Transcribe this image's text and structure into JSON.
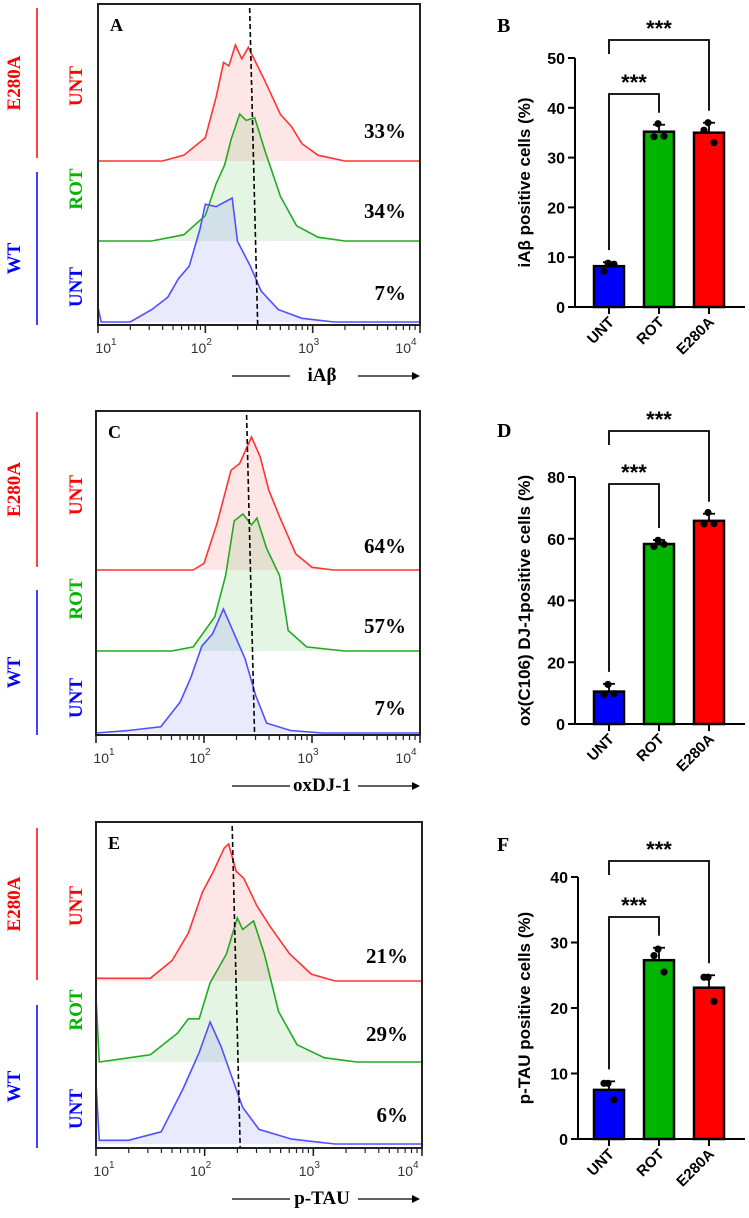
{
  "colors": {
    "wt_unt": "#0000ff",
    "rot": "#00b400",
    "e280a": "#ff0000",
    "hist_blue": "#5050ff",
    "hist_green": "#22aa22",
    "hist_red": "#ff3333"
  },
  "group_labels": {
    "e280a": "E280A",
    "wt": "WT",
    "unt": "UNT",
    "rot": "ROT"
  },
  "chart_data": [
    {
      "panel": "A",
      "type": "area",
      "xlabel": "iAβ",
      "x_scale": "log",
      "xlim": [
        10,
        10000
      ],
      "x_tick_labels": [
        "10",
        "10",
        "10",
        "10"
      ],
      "x_tick_exponents": [
        "1",
        "2",
        "3",
        "4"
      ],
      "threshold": 282,
      "series": [
        {
          "name": "E280A UNT",
          "color": "#ff3333",
          "percent": "33%",
          "points": [
            [
              1.6,
              0
            ],
            [
              1.8,
              0.05
            ],
            [
              2.0,
              0.2
            ],
            [
              2.1,
              0.55
            ],
            [
              2.17,
              0.85
            ],
            [
              2.22,
              0.82
            ],
            [
              2.28,
              1
            ],
            [
              2.34,
              0.88
            ],
            [
              2.4,
              0.98
            ],
            [
              2.55,
              0.7
            ],
            [
              2.7,
              0.4
            ],
            [
              2.8,
              0.3
            ],
            [
              2.9,
              0.15
            ],
            [
              3.05,
              0.05
            ],
            [
              3.3,
              0
            ],
            [
              4,
              0
            ]
          ]
        },
        {
          "name": "WT ROT",
          "color": "#22aa22",
          "percent": "34%",
          "points": [
            [
              1.5,
              0
            ],
            [
              1.8,
              0.05
            ],
            [
              2.0,
              0.2
            ],
            [
              2.1,
              0.45
            ],
            [
              2.18,
              0.6
            ],
            [
              2.24,
              0.8
            ],
            [
              2.32,
              1
            ],
            [
              2.38,
              0.95
            ],
            [
              2.46,
              0.97
            ],
            [
              2.56,
              0.7
            ],
            [
              2.7,
              0.35
            ],
            [
              2.85,
              0.12
            ],
            [
              3.05,
              0.03
            ],
            [
              3.3,
              0
            ],
            [
              4,
              0
            ]
          ]
        },
        {
          "name": "WT UNT",
          "color": "#5050ff",
          "percent": "7%",
          "points": [
            [
              1.0,
              0.12
            ],
            [
              1.03,
              0
            ],
            [
              1.3,
              0
            ],
            [
              1.5,
              0.1
            ],
            [
              1.65,
              0.2
            ],
            [
              1.75,
              0.35
            ],
            [
              1.85,
              0.45
            ],
            [
              1.95,
              0.75
            ],
            [
              2.0,
              0.95
            ],
            [
              2.1,
              0.93
            ],
            [
              2.25,
              1
            ],
            [
              2.3,
              0.65
            ],
            [
              2.42,
              0.45
            ],
            [
              2.52,
              0.25
            ],
            [
              2.68,
              0.1
            ],
            [
              2.9,
              0.03
            ],
            [
              3.2,
              0
            ],
            [
              4,
              0
            ]
          ]
        }
      ]
    },
    {
      "panel": "B",
      "type": "bar",
      "ylabel": "iAβ positive cells (%)",
      "ylim": [
        0,
        50
      ],
      "yticks": [
        "0",
        "10",
        "20",
        "30",
        "40",
        "50"
      ],
      "categories": [
        "UNT",
        "ROT",
        "E280A"
      ],
      "values": [
        8.2,
        35.2,
        35.0
      ],
      "errors": [
        0.8,
        1.4,
        2.0
      ],
      "points": [
        [
          8.8,
          7.2,
          8.6
        ],
        [
          36.8,
          34.2,
          34.3
        ],
        [
          37.0,
          35.5,
          33.0
        ]
      ],
      "comparisons": [
        {
          "pair": [
            "UNT",
            "ROT"
          ],
          "label": "***"
        },
        {
          "pair": [
            "UNT",
            "E280A"
          ],
          "label": "***"
        }
      ]
    },
    {
      "panel": "C",
      "type": "area",
      "xlabel": "oxDJ-1",
      "x_scale": "log",
      "xlim": [
        10,
        10000
      ],
      "x_tick_labels": [
        "10",
        "10",
        "10",
        "10"
      ],
      "x_tick_exponents": [
        "1",
        "2",
        "3",
        "4"
      ],
      "threshold": 270,
      "series": [
        {
          "name": "E280A UNT",
          "color": "#ff3333",
          "percent": "64%",
          "points": [
            [
              1.9,
              0
            ],
            [
              2.0,
              0.05
            ],
            [
              2.12,
              0.35
            ],
            [
              2.25,
              0.75
            ],
            [
              2.33,
              0.8
            ],
            [
              2.44,
              1
            ],
            [
              2.52,
              0.85
            ],
            [
              2.6,
              0.6
            ],
            [
              2.7,
              0.4
            ],
            [
              2.85,
              0.12
            ],
            [
              3.0,
              0.02
            ],
            [
              3.2,
              0
            ],
            [
              4,
              0
            ]
          ]
        },
        {
          "name": "WT ROT",
          "color": "#22aa22",
          "percent": "57%",
          "points": [
            [
              1.7,
              0
            ],
            [
              1.9,
              0.03
            ],
            [
              2.1,
              0.25
            ],
            [
              2.2,
              0.55
            ],
            [
              2.28,
              0.95
            ],
            [
              2.36,
              1
            ],
            [
              2.44,
              0.92
            ],
            [
              2.49,
              0.97
            ],
            [
              2.58,
              0.75
            ],
            [
              2.7,
              0.55
            ],
            [
              2.78,
              0.15
            ],
            [
              2.95,
              0.03
            ],
            [
              3.3,
              0
            ],
            [
              4,
              0
            ]
          ]
        },
        {
          "name": "WT UNT",
          "color": "#5050ff",
          "percent": "7%",
          "points": [
            [
              1.0,
              0
            ],
            [
              1.3,
              0.02
            ],
            [
              1.6,
              0.05
            ],
            [
              1.78,
              0.25
            ],
            [
              1.88,
              0.45
            ],
            [
              1.98,
              0.7
            ],
            [
              2.08,
              0.8
            ],
            [
              2.18,
              1
            ],
            [
              2.28,
              0.8
            ],
            [
              2.38,
              0.6
            ],
            [
              2.48,
              0.3
            ],
            [
              2.58,
              0.08
            ],
            [
              2.8,
              0.02
            ],
            [
              3.1,
              0
            ],
            [
              4,
              0
            ]
          ]
        }
      ]
    },
    {
      "panel": "D",
      "type": "bar",
      "ylabel": "ox(C106) DJ-1positive cells (%)",
      "ylim": [
        0,
        80
      ],
      "yticks": [
        "0",
        "20",
        "40",
        "60",
        "80"
      ],
      "categories": [
        "UNT",
        "ROT",
        "E280A"
      ],
      "values": [
        10.5,
        58.3,
        65.8
      ],
      "errors": [
        2.5,
        1.3,
        2.3
      ],
      "points": [
        [
          12.8,
          9.5,
          9.8
        ],
        [
          59.5,
          57.5,
          58.2
        ],
        [
          68.5,
          64.8,
          64.9
        ]
      ],
      "comparisons": [
        {
          "pair": [
            "UNT",
            "ROT"
          ],
          "label": "***"
        },
        {
          "pair": [
            "UNT",
            "E280A"
          ],
          "label": "***"
        }
      ]
    },
    {
      "panel": "E",
      "type": "area",
      "xlabel": "p-TAU",
      "x_scale": "log",
      "xlim": [
        10,
        10000
      ],
      "x_tick_labels": [
        "10",
        "10",
        "10",
        "10"
      ],
      "x_tick_exponents": [
        "1",
        "2",
        "3",
        "4"
      ],
      "threshold": 195,
      "series": [
        {
          "name": "E280A UNT",
          "color": "#ff3333",
          "percent": "21%",
          "points": [
            [
              1.0,
              0.02
            ],
            [
              1.5,
              0.02
            ],
            [
              1.7,
              0.15
            ],
            [
              1.85,
              0.35
            ],
            [
              1.98,
              0.65
            ],
            [
              2.08,
              0.8
            ],
            [
              2.18,
              0.97
            ],
            [
              2.22,
              1
            ],
            [
              2.29,
              0.8
            ],
            [
              2.36,
              0.75
            ],
            [
              2.48,
              0.55
            ],
            [
              2.6,
              0.4
            ],
            [
              2.78,
              0.2
            ],
            [
              2.98,
              0.05
            ],
            [
              3.2,
              0
            ],
            [
              4,
              0
            ]
          ]
        },
        {
          "name": "WT ROT",
          "color": "#22aa22",
          "percent": "29%",
          "points": [
            [
              1.0,
              0.45
            ],
            [
              1.03,
              0
            ],
            [
              1.5,
              0.05
            ],
            [
              1.75,
              0.2
            ],
            [
              1.85,
              0.3
            ],
            [
              1.95,
              0.3
            ],
            [
              2.05,
              0.55
            ],
            [
              2.2,
              0.75
            ],
            [
              2.3,
              1
            ],
            [
              2.35,
              0.92
            ],
            [
              2.45,
              0.98
            ],
            [
              2.55,
              0.75
            ],
            [
              2.68,
              0.35
            ],
            [
              2.85,
              0.12
            ],
            [
              3.1,
              0.03
            ],
            [
              3.4,
              0
            ],
            [
              4,
              0
            ]
          ]
        },
        {
          "name": "WT UNT",
          "color": "#5050ff",
          "percent": "6%",
          "points": [
            [
              1.0,
              0.5
            ],
            [
              1.03,
              0.03
            ],
            [
              1.3,
              0.03
            ],
            [
              1.6,
              0.1
            ],
            [
              1.8,
              0.45
            ],
            [
              1.95,
              0.75
            ],
            [
              2.05,
              1
            ],
            [
              2.15,
              0.8
            ],
            [
              2.25,
              0.55
            ],
            [
              2.35,
              0.3
            ],
            [
              2.5,
              0.12
            ],
            [
              2.8,
              0.04
            ],
            [
              3.2,
              0
            ],
            [
              4,
              0
            ]
          ]
        }
      ]
    },
    {
      "panel": "F",
      "type": "bar",
      "ylabel": "p-TAU positive cells (%)",
      "ylim": [
        0,
        40
      ],
      "yticks": [
        "0",
        "10",
        "20",
        "30",
        "40"
      ],
      "categories": [
        "UNT",
        "ROT",
        "E280A"
      ],
      "values": [
        7.5,
        27.3,
        23.1
      ],
      "errors": [
        1.3,
        1.9,
        1.9
      ],
      "points": [
        [
          8.5,
          8.5,
          6.0
        ],
        [
          29.0,
          28.0,
          25.5
        ],
        [
          24.7,
          24.7,
          21.0
        ]
      ],
      "comparisons": [
        {
          "pair": [
            "UNT",
            "ROT"
          ],
          "label": "***"
        },
        {
          "pair": [
            "UNT",
            "E280A"
          ],
          "label": "***"
        }
      ]
    }
  ]
}
